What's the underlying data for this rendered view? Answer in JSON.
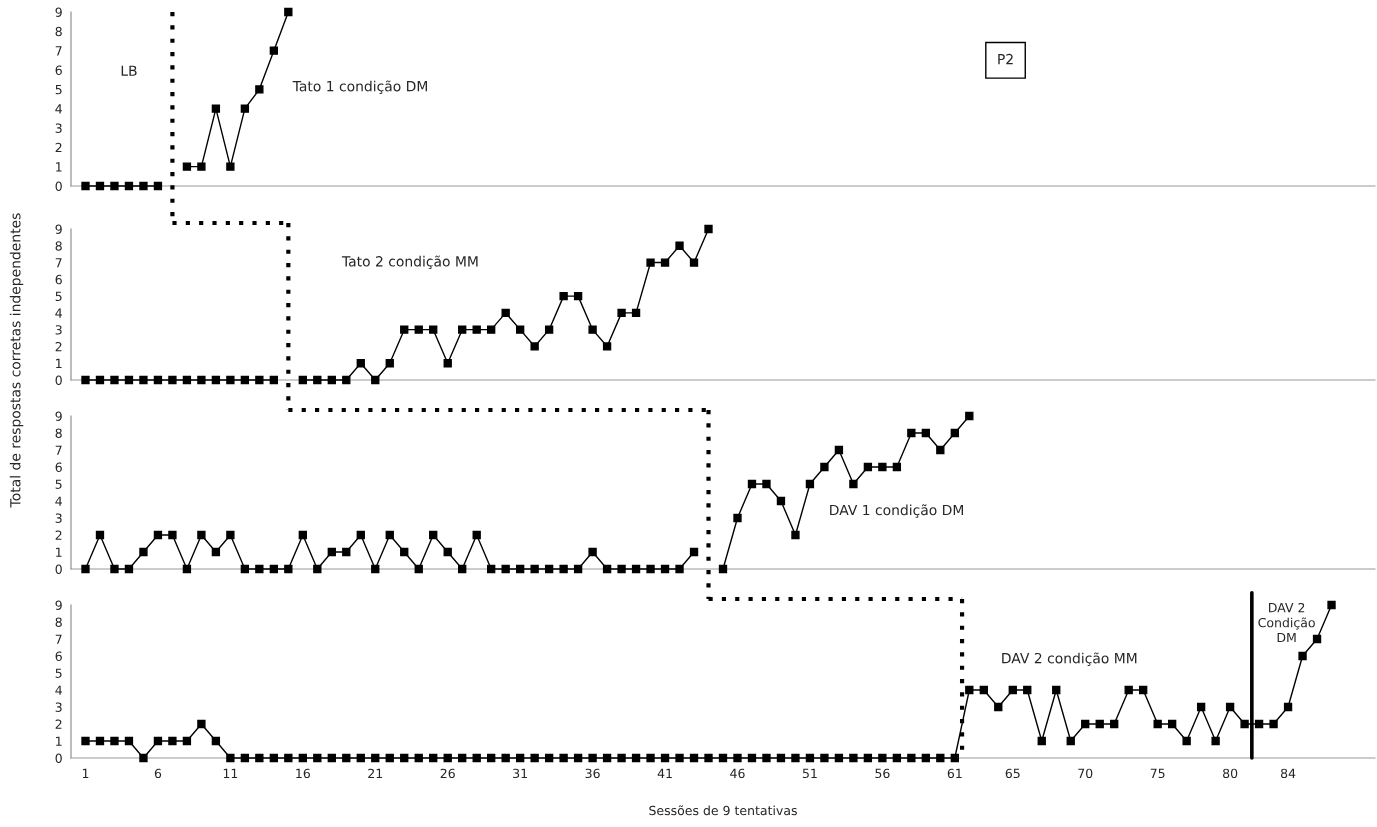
{
  "chart_data": [
    {
      "type": "line",
      "x": [
        1,
        2,
        3,
        4,
        5,
        6,
        7,
        8,
        9,
        10,
        11,
        12,
        13,
        14,
        15
      ],
      "xlim": [
        0,
        90
      ],
      "xticks": [
        1,
        6,
        11,
        16,
        21,
        26,
        31,
        36,
        41,
        46,
        51,
        56,
        61,
        65,
        70,
        75,
        80,
        84
      ],
      "ylim": [
        0,
        9
      ],
      "yticks": [
        0,
        1,
        2,
        3,
        4,
        5,
        6,
        7,
        8,
        9
      ],
      "tick_labels": "y",
      "marker": "square",
      "ylabel": "Total de respostas corretas independentes",
      "series": [
        {
          "color": "#000000",
          "values": [
            0,
            0,
            0,
            0,
            0,
            0,
            null,
            1,
            1,
            4,
            1,
            4,
            5,
            7,
            9
          ]
        }
      ],
      "ref_lines": [
        {
          "axis": "x",
          "value": 7,
          "line_style": "dotted"
        }
      ],
      "annotations": [
        "LB",
        "Tato 1 condição DM",
        "P2"
      ]
    },
    {
      "type": "line",
      "x": [
        1,
        2,
        3,
        4,
        5,
        6,
        7,
        8,
        9,
        10,
        11,
        12,
        13,
        14,
        15,
        16,
        17,
        18,
        19,
        20,
        21,
        22,
        23,
        24,
        25,
        26,
        27,
        28,
        29,
        30,
        31,
        32,
        33,
        34,
        35,
        36,
        37,
        38,
        39,
        40,
        41,
        42,
        43,
        44
      ],
      "xlim": [
        0,
        90
      ],
      "xticks": [
        1,
        6,
        11,
        16,
        21,
        26,
        31,
        36,
        41,
        46,
        51,
        56,
        61,
        65,
        70,
        75,
        80,
        84
      ],
      "ylim": [
        0,
        9
      ],
      "yticks": [
        0,
        1,
        2,
        3,
        4,
        5,
        6,
        7,
        8,
        9
      ],
      "tick_labels": "y",
      "marker": "square",
      "series": [
        {
          "color": "#000000",
          "values": [
            0,
            0,
            0,
            0,
            0,
            0,
            0,
            0,
            0,
            0,
            0,
            0,
            0,
            0,
            null,
            0,
            0,
            0,
            0,
            1,
            0,
            1,
            3,
            3,
            3,
            1,
            3,
            3,
            3,
            4,
            3,
            2,
            3,
            5,
            5,
            3,
            2,
            4,
            4,
            7,
            7,
            8,
            7,
            9
          ]
        }
      ],
      "ref_lines": [
        {
          "axis": "x",
          "value": 15,
          "line_style": "dotted"
        }
      ],
      "annotations": [
        "Tato 2 condição MM"
      ]
    },
    {
      "type": "line",
      "x": [
        1,
        2,
        3,
        4,
        5,
        6,
        7,
        8,
        9,
        10,
        11,
        12,
        13,
        14,
        15,
        16,
        17,
        18,
        19,
        20,
        21,
        22,
        23,
        24,
        25,
        26,
        27,
        28,
        29,
        30,
        31,
        32,
        33,
        34,
        35,
        36,
        37,
        38,
        39,
        40,
        41,
        42,
        43,
        44,
        45,
        46,
        47,
        48,
        49,
        50,
        51,
        52,
        53,
        54,
        55,
        56,
        57,
        58,
        59,
        60,
        61,
        62
      ],
      "xlim": [
        0,
        90
      ],
      "xticks": [
        1,
        6,
        11,
        16,
        21,
        26,
        31,
        36,
        41,
        46,
        51,
        56,
        61,
        65,
        70,
        75,
        80,
        84
      ],
      "ylim": [
        0,
        9
      ],
      "yticks": [
        0,
        1,
        2,
        3,
        4,
        5,
        6,
        7,
        8,
        9
      ],
      "tick_labels": "y",
      "marker": "square",
      "series": [
        {
          "color": "#000000",
          "values": [
            0,
            2,
            0,
            0,
            1,
            2,
            2,
            0,
            2,
            1,
            2,
            0,
            0,
            0,
            0,
            2,
            0,
            1,
            1,
            2,
            0,
            2,
            1,
            0,
            2,
            1,
            0,
            2,
            0,
            0,
            0,
            0,
            0,
            0,
            0,
            1,
            0,
            0,
            0,
            0,
            0,
            0,
            1,
            null,
            0,
            3,
            5,
            5,
            4,
            2,
            5,
            6,
            7,
            5,
            6,
            6,
            6,
            8,
            8,
            7,
            8,
            9
          ]
        }
      ],
      "ref_lines": [
        {
          "axis": "x",
          "value": 44,
          "line_style": "dotted"
        }
      ],
      "annotations": [
        "DAV 1 condição DM"
      ]
    },
    {
      "type": "line",
      "x": [
        1,
        2,
        3,
        4,
        5,
        6,
        7,
        8,
        9,
        10,
        11,
        12,
        13,
        14,
        15,
        16,
        17,
        18,
        19,
        20,
        21,
        22,
        23,
        24,
        25,
        26,
        27,
        28,
        29,
        30,
        31,
        32,
        33,
        34,
        35,
        36,
        37,
        38,
        39,
        40,
        41,
        42,
        43,
        44,
        45,
        46,
        47,
        48,
        49,
        50,
        51,
        52,
        53,
        54,
        55,
        56,
        57,
        58,
        59,
        60,
        61,
        62,
        63,
        64,
        65,
        66,
        67,
        68,
        69,
        70,
        71,
        72,
        73,
        74,
        75,
        76,
        77,
        78,
        79,
        80,
        81,
        82,
        83,
        84,
        85,
        86,
        87
      ],
      "xlim": [
        0,
        90
      ],
      "xticks": [
        1,
        6,
        11,
        16,
        21,
        26,
        31,
        36,
        41,
        46,
        51,
        56,
        61,
        65,
        70,
        75,
        80,
        84
      ],
      "ylim": [
        0,
        9
      ],
      "yticks": [
        0,
        1,
        2,
        3,
        4,
        5,
        6,
        7,
        8,
        9
      ],
      "marker": "square",
      "xlabel": "Sessões de 9 tentativas",
      "series": [
        {
          "color": "#000000",
          "values": [
            1,
            1,
            1,
            1,
            0,
            1,
            1,
            1,
            2,
            1,
            0,
            0,
            0,
            0,
            0,
            0,
            0,
            0,
            0,
            0,
            0,
            0,
            0,
            0,
            0,
            0,
            0,
            0,
            0,
            0,
            0,
            0,
            0,
            0,
            0,
            0,
            0,
            0,
            0,
            0,
            0,
            0,
            0,
            0,
            0,
            0,
            0,
            0,
            0,
            0,
            0,
            0,
            0,
            0,
            0,
            0,
            0,
            0,
            0,
            0,
            0,
            4,
            4,
            3,
            4,
            4,
            1,
            4,
            1,
            2,
            2,
            2,
            4,
            4,
            2,
            2,
            1,
            3,
            1,
            3,
            2,
            2,
            2,
            3,
            6,
            7,
            9
          ]
        }
      ],
      "ref_lines": [
        {
          "axis": "x",
          "value": 61.5,
          "line_style": "dotted"
        },
        {
          "axis": "x",
          "value": 81.5,
          "line_style": "solid"
        }
      ],
      "annotations": [
        "DAV 2 condição MM",
        "DAV 2\nCondição\nDM"
      ]
    }
  ]
}
